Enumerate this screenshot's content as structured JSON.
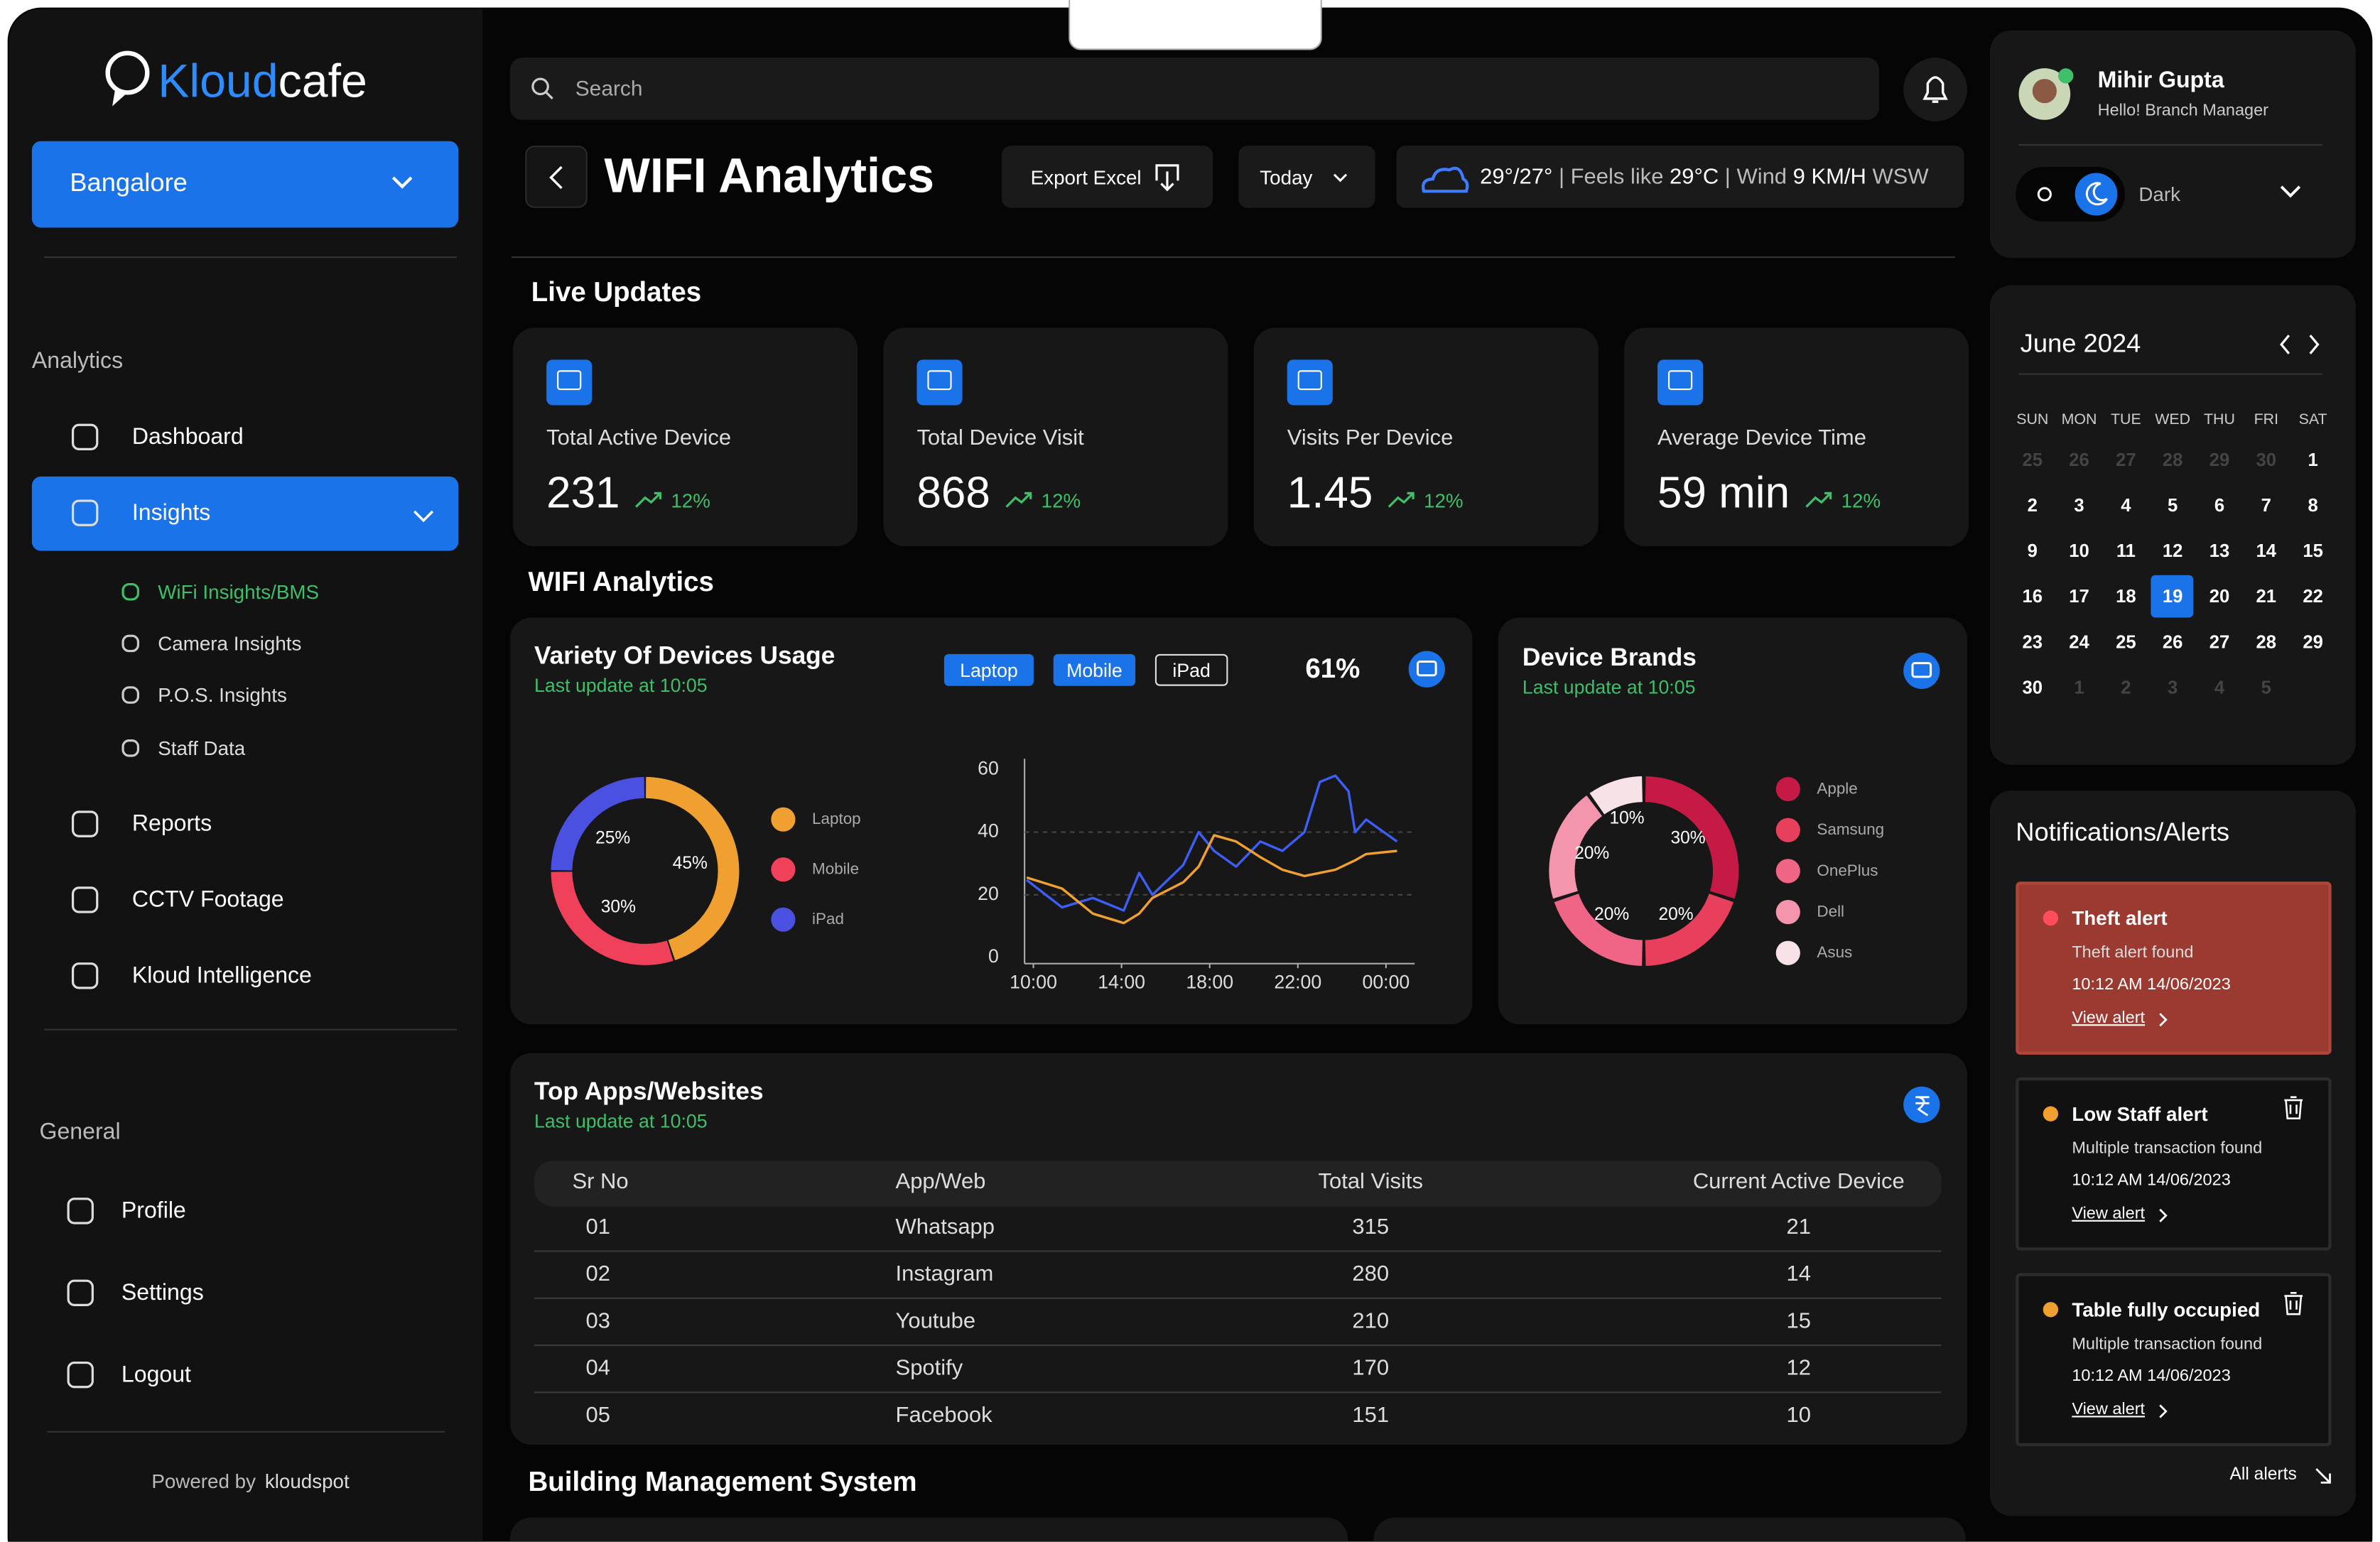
{
  "sidebar": {
    "brand": [
      "Kloud",
      "cafe"
    ],
    "location": "Bangalore",
    "analytics_heading": "Analytics",
    "analytics_items": [
      "Dashboard",
      "Insights",
      "Reports",
      "CCTV Footage",
      "Kloud Intelligence"
    ],
    "active_item": 1,
    "insights_items": [
      "WiFi Insights/BMS",
      "Camera Insights",
      "P.O.S. Insights",
      "Staff Data"
    ],
    "active_insight": 0,
    "general_heading": "General",
    "general_items": [
      "Profile",
      "Settings",
      "Logout"
    ],
    "powered_by": "Powered by",
    "powered_brand": "kloudspot"
  },
  "header": {
    "search_placeholder": "Search",
    "title": "WIFI Analytics",
    "export": "Export Excel",
    "period": "Today",
    "weather": {
      "temps": "29°/27°",
      "feels_label": "| Feels like",
      "feels": "29°C",
      "wind_label": "|  Wind",
      "wind": "9 KM/H",
      "direction": "WSW"
    }
  },
  "live_updates": {
    "heading": "Live Updates",
    "cards": [
      {
        "label": "Total Active Device",
        "value": "231",
        "change": "12%"
      },
      {
        "label": "Total Device Visit",
        "value": "868",
        "change": "12%"
      },
      {
        "label": "Visits Per Device",
        "value": "1.45",
        "change": "12%"
      },
      {
        "label": "Average Device Time",
        "value": "59 min",
        "change": "12%"
      }
    ]
  },
  "wifi_heading": "WIFI Analytics",
  "device_usage": {
    "title": "Variety Of Devices Usage",
    "subtitle": "Last update at 10:05",
    "toggles": [
      {
        "label": "Laptop",
        "active": true
      },
      {
        "label": "Mobile",
        "active": true
      },
      {
        "label": "iPad",
        "active": false
      }
    ],
    "share": "61%",
    "donut": {
      "type": "pie",
      "categories": [
        "Laptop",
        "Mobile",
        "iPad"
      ],
      "values": [
        45,
        30,
        25
      ],
      "value_labels": [
        "45%",
        "30%",
        "25%"
      ],
      "colors": [
        "#f0a030",
        "#f0405a",
        "#4a50e0"
      ]
    },
    "line": {
      "type": "line",
      "x": [
        9.7,
        11.3,
        12.7,
        14.1,
        14.8,
        15.4,
        16.8,
        17.5,
        18.2,
        19.2,
        20.3,
        21.3,
        22.3,
        23.0,
        23.7,
        24.3,
        24.6,
        25.1,
        26.5
      ],
      "series": [
        {
          "color": "#3d5ef5",
          "values": [
            24.7,
            16,
            19,
            15,
            27,
            20,
            29.5,
            40,
            34,
            29,
            37,
            34,
            40,
            56,
            58,
            53,
            40,
            44,
            37
          ]
        },
        {
          "color": "#f0a030",
          "values": [
            25.5,
            22,
            14,
            11,
            14,
            19,
            24,
            29,
            39,
            37,
            32,
            28,
            26,
            27,
            28,
            30,
            31,
            33,
            34
          ]
        }
      ],
      "xlim": [
        9.6,
        27.3
      ],
      "xticks": [
        {
          "value": 10,
          "label": "10:00"
        },
        {
          "value": 14,
          "label": "14:00"
        },
        {
          "value": 18,
          "label": "18:00"
        },
        {
          "value": 22,
          "label": "22:00"
        },
        {
          "value": 26,
          "label": "00:00"
        }
      ],
      "ylim": [
        0,
        60
      ],
      "yticks": [
        0,
        20,
        40,
        60
      ],
      "grid": true
    }
  },
  "device_brands": {
    "title": "Device Brands",
    "subtitle": "Last update at 10:05",
    "donut": {
      "type": "pie",
      "categories": [
        "Apple",
        "Samsung",
        "OnePlus",
        "Dell",
        "Asus"
      ],
      "values": [
        30,
        20,
        20,
        20,
        10
      ],
      "value_labels": [
        "30%",
        "20%",
        "20%",
        "20%",
        "10%"
      ],
      "colors": [
        "#c41a45",
        "#e8405c",
        "#f06585",
        "#f594ad",
        "#f7e2e7"
      ]
    }
  },
  "top_apps": {
    "title": "Top Apps/Websites",
    "subtitle": "Last update at 10:05",
    "columns": [
      "Sr No",
      "App/Web",
      "Total Visits",
      "Current Active Device"
    ],
    "rows": [
      [
        "01",
        "Whatsapp",
        315,
        21
      ],
      [
        "02",
        "Instagram",
        280,
        14
      ],
      [
        "03",
        "Youtube",
        210,
        15
      ],
      [
        "04",
        "Spotify",
        170,
        12
      ],
      [
        "05",
        "Facebook",
        151,
        10
      ]
    ]
  },
  "bms_heading": "Building Management System",
  "user": {
    "name": "Mihir Gupta",
    "greeting": "Hello! Branch Manager",
    "theme": "Dark"
  },
  "calendar": {
    "month": "June 2024",
    "weekdays": [
      "SUN",
      "MON",
      "TUE",
      "WED",
      "THU",
      "FRI",
      "SAT"
    ],
    "leading_days": [
      25,
      26,
      27,
      28,
      29,
      30
    ],
    "days": [
      1,
      2,
      3,
      4,
      5,
      6,
      7,
      8,
      9,
      10,
      11,
      12,
      13,
      14,
      15,
      16,
      17,
      18,
      19,
      20,
      21,
      22,
      23,
      24,
      25,
      26,
      27,
      28,
      29,
      30
    ],
    "trailing_days": [
      1,
      2,
      3,
      4,
      5
    ],
    "selected": 19
  },
  "notifications": {
    "title": "Notifications/Alerts",
    "alerts": [
      {
        "title": "Theft alert",
        "message": "Theft alert found",
        "time": "10:12 AM 14/06/2023",
        "link": "View alert",
        "level": "critical"
      },
      {
        "title": "Low Staff alert",
        "message": "Multiple transaction found",
        "time": "10:12 AM 14/06/2023",
        "link": "View alert",
        "level": "warning"
      },
      {
        "title": "Table fully occupied",
        "message": "Multiple transaction found",
        "time": "10:12 AM 14/06/2023",
        "link": "View alert",
        "level": "warning"
      }
    ],
    "all_alerts": "All alerts"
  }
}
